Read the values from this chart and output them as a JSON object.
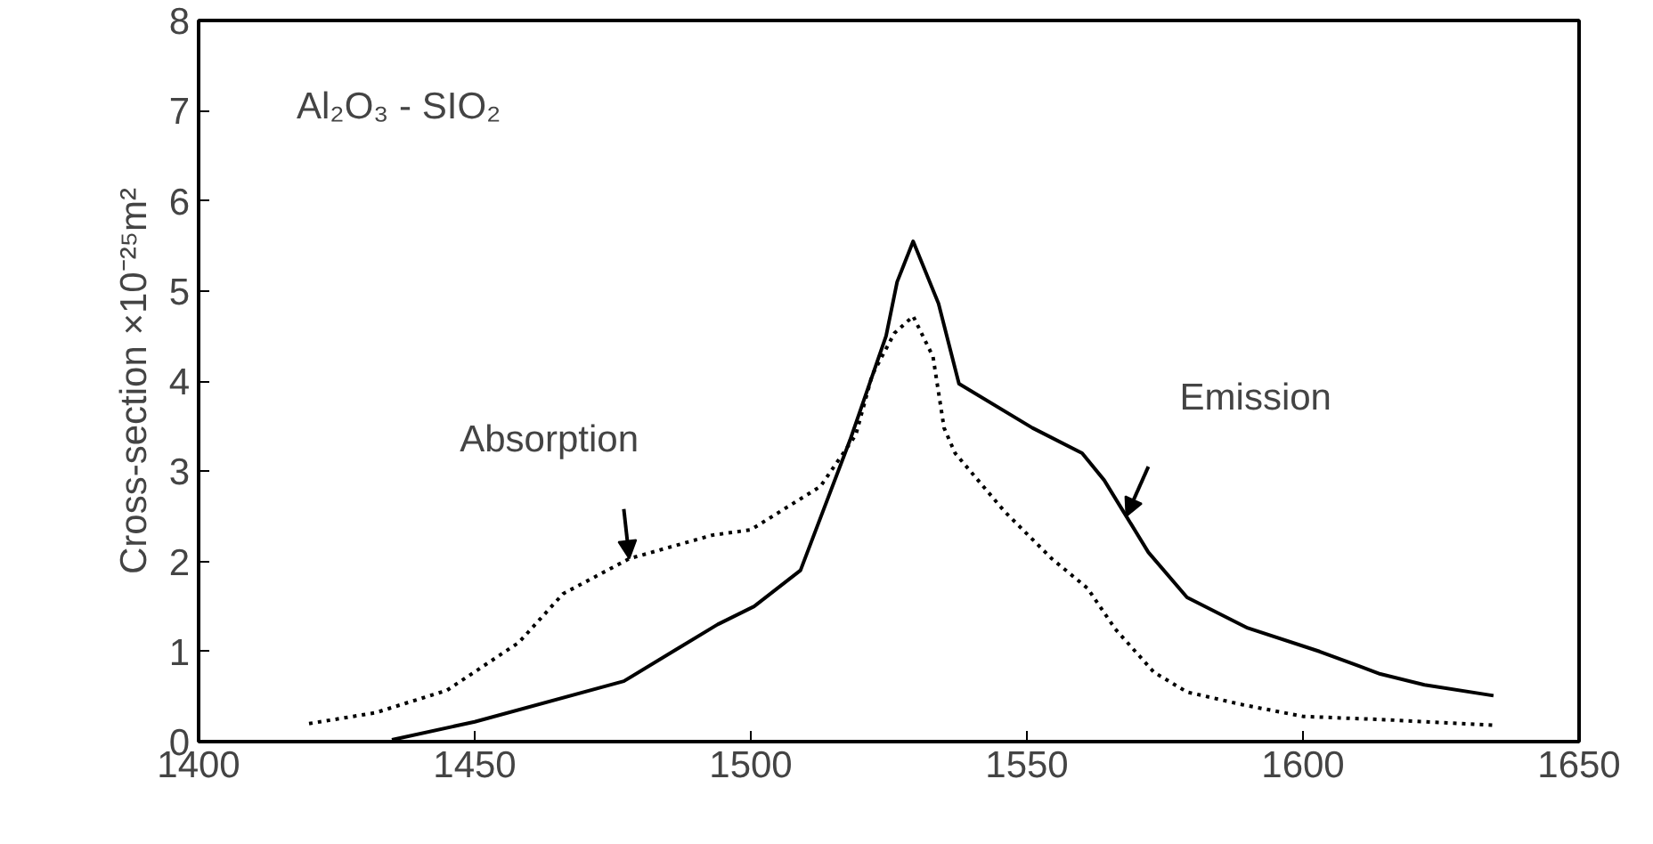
{
  "chart_data": {
    "type": "line",
    "ylabel": "Cross-section ×10⁻²⁵m²",
    "xlim": [
      1400,
      1650
    ],
    "xticks": [
      1400,
      1450,
      1500,
      1550,
      1600,
      1650
    ],
    "ylim": [
      0,
      8
    ],
    "yticks": [
      0,
      1,
      2,
      3,
      4,
      5,
      6,
      7,
      8
    ],
    "grid": false,
    "series": [
      {
        "color": "#000000",
        "line_style": "dotted",
        "x": [
          1420,
          1432,
          1445,
          1458,
          1466,
          1478,
          1493,
          1500,
          1512.6,
          1519,
          1522,
          1526,
          1529.4,
          1533,
          1535,
          1537,
          1546,
          1554.5,
          1561,
          1566,
          1573,
          1579,
          1589,
          1600,
          1616,
          1635
        ],
        "values": [
          0.2,
          0.32,
          0.57,
          1.1,
          1.64,
          2.03,
          2.29,
          2.35,
          2.83,
          3.4,
          4.07,
          4.53,
          4.72,
          4.27,
          3.48,
          3.2,
          2.55,
          2.03,
          1.7,
          1.25,
          0.77,
          0.55,
          0.41,
          0.28,
          0.24,
          0.18
        ]
      },
      {
        "color": "#000000",
        "line_style": "solid",
        "x": [
          1435,
          1450,
          1477,
          1494,
          1500.6,
          1509,
          1518,
          1524.5,
          1526.5,
          1529.4,
          1534,
          1537.7,
          1551,
          1560,
          1564,
          1568,
          1572,
          1579,
          1590,
          1603,
          1614,
          1622,
          1634.5
        ],
        "values": [
          0.02,
          0.22,
          0.67,
          1.3,
          1.5,
          1.9,
          3.35,
          4.5,
          5.1,
          5.55,
          4.86,
          3.97,
          3.48,
          3.2,
          2.9,
          2.5,
          2.1,
          1.6,
          1.26,
          1.0,
          0.75,
          0.63,
          0.51
        ]
      }
    ],
    "annotations": [
      "Al₂O₃ - SIO₂",
      {
        "text": "Absorption",
        "x": 1478,
        "y": 2.03
      },
      {
        "text": "Emission",
        "x": 1568,
        "y": 2.5
      }
    ]
  }
}
